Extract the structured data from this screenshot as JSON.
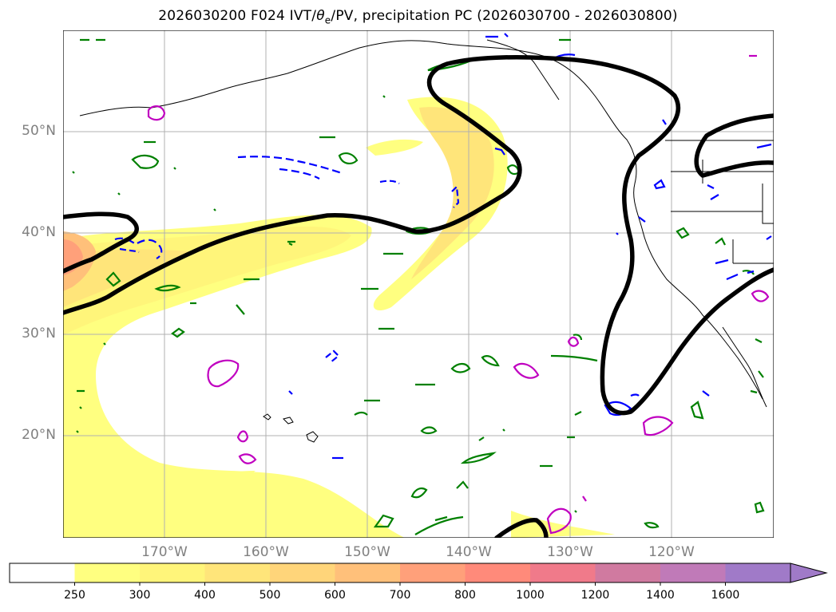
{
  "title": {
    "prefix": "2026030200 F024 IVT/",
    "theta": "θ",
    "theta_sub": "e",
    "suffix": "/PV, precipitation PC (2026030700 - 2026030800)"
  },
  "map": {
    "lat_labels": [
      "50°N",
      "40°N",
      "30°N",
      "20°N"
    ],
    "lon_labels": [
      "170°W",
      "160°W",
      "150°W",
      "140°W",
      "130°W",
      "120°W"
    ],
    "lat_values": [
      50,
      40,
      30,
      20
    ],
    "lon_values": [
      -170,
      -160,
      -150,
      -140,
      -130,
      -120
    ],
    "extent": {
      "lon_min": -180,
      "lon_max": -110,
      "lat_min": 10,
      "lat_max": 60
    }
  },
  "colorbar": {
    "levels": [
      "250",
      "300",
      "400",
      "500",
      "600",
      "700",
      "800",
      "1000",
      "1200",
      "1400",
      "1600"
    ],
    "colors": [
      "#ffffff",
      "#ffff80",
      "#fff57a",
      "#ffe57a",
      "#ffd57a",
      "#ffc07a",
      "#ffa07a",
      "#ff8a7a",
      "#f07a8a",
      "#d07aa0",
      "#c07ab8",
      "#a07ac8"
    ],
    "extend": "max"
  },
  "legend_colors": {
    "pv_contour": "#000000",
    "theta_e_warm": "#008000",
    "theta_e_cold": "#0000ff",
    "theta_e_high": "#c000c0"
  }
}
